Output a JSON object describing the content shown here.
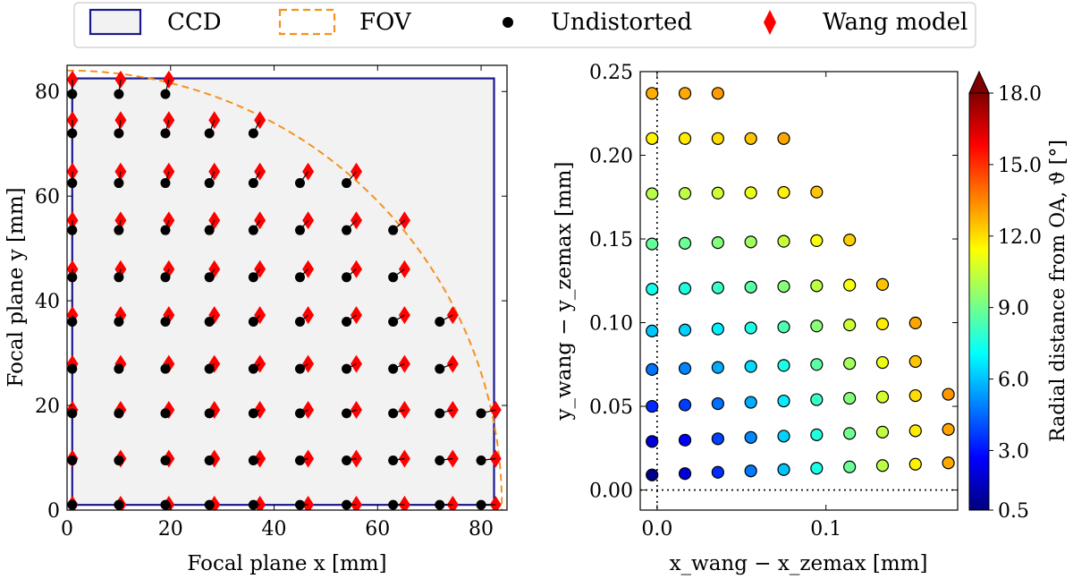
{
  "legend": {
    "placement": "top-center, above both panels",
    "entries": [
      {
        "label": "CCD",
        "marker": "rectangle-outline",
        "color": "#1a1a8c"
      },
      {
        "label": "FOV",
        "marker": "dashed-rectangle-outline",
        "color": "#f5921e"
      },
      {
        "label": "Undistorted",
        "marker": "circle",
        "color": "#000000"
      },
      {
        "label": "Wang model",
        "marker": "diamond",
        "color": "#ff0000"
      }
    ]
  },
  "chart_data": [
    {
      "type": "scatter",
      "title": "",
      "xlabel": "Focal plane x [mm]",
      "ylabel": "Focal plane y [mm]",
      "xlim": [
        0,
        85
      ],
      "ylim": [
        0,
        85
      ],
      "xticks": [
        "0",
        "20",
        "40",
        "60",
        "80"
      ],
      "yticks": [
        "0",
        "20",
        "40",
        "60",
        "80"
      ],
      "grid": false,
      "background": "#f2f2f2",
      "ccd": {
        "x": [
          1,
          82.5
        ],
        "y": [
          1,
          82.5
        ],
        "color": "#1a1a8c"
      },
      "fov": {
        "center": [
          0,
          0
        ],
        "radius": 84,
        "color": "#f5921e",
        "style": "dashed"
      },
      "undistorted_grid": {
        "columns": [
          1,
          10,
          19,
          27.5,
          36,
          45,
          54,
          63,
          72,
          80
        ],
        "rows": [
          1,
          9.5,
          18.5,
          27,
          36,
          44.5,
          53.5,
          62.5,
          72,
          79.5
        ],
        "boundary_radius": 83.5
      },
      "wang_model": {
        "distortion_factor": 1.035,
        "marker": "diamond",
        "color": "#ff0000"
      }
    },
    {
      "type": "scatter",
      "title": "",
      "xlabel": "x_wang − x_zemax [mm]",
      "ylabel": "y_wang − y_zemax [mm]",
      "xlim": [
        -0.01,
        0.178
      ],
      "ylim": [
        -0.012,
        0.25
      ],
      "xticks": [
        "0.0",
        "0.1"
      ],
      "yticks": [
        "0.00",
        "0.05",
        "0.10",
        "0.15",
        "0.20",
        "0.25"
      ],
      "grid": false,
      "reference_lines": {
        "x": 0,
        "y": 0,
        "style": "dotted"
      },
      "colorbar": {
        "label": "Radial distance from OA, ϑ [°]",
        "min": 0.5,
        "max": 18.0,
        "ticks": [
          "0.5",
          "3.0",
          "6.0",
          "9.0",
          "12.0",
          "15.0",
          "18.0"
        ],
        "colormap": "jet",
        "extend": "max"
      },
      "rows": [
        {
          "y_start": 0.009,
          "dy": 0.0008,
          "count": 10
        },
        {
          "y_start": 0.029,
          "dy": 0.0008,
          "count": 10
        },
        {
          "y_start": 0.05,
          "dy": 0.0008,
          "count": 10
        },
        {
          "y_start": 0.072,
          "dy": 0.0006,
          "count": 9
        },
        {
          "y_start": 0.095,
          "dy": 0.0006,
          "count": 9
        },
        {
          "y_start": 0.12,
          "dy": 0.0004,
          "count": 8
        },
        {
          "y_start": 0.147,
          "dy": 0.0004,
          "count": 7
        },
        {
          "y_start": 0.177,
          "dy": 0.0002,
          "count": 6
        },
        {
          "y_start": 0.21,
          "dy": 0.0,
          "count": 5
        },
        {
          "y_start": 0.237,
          "dy": 0.0,
          "count": 3
        }
      ],
      "x_step": 0.0195,
      "x_start": -0.003
    }
  ]
}
